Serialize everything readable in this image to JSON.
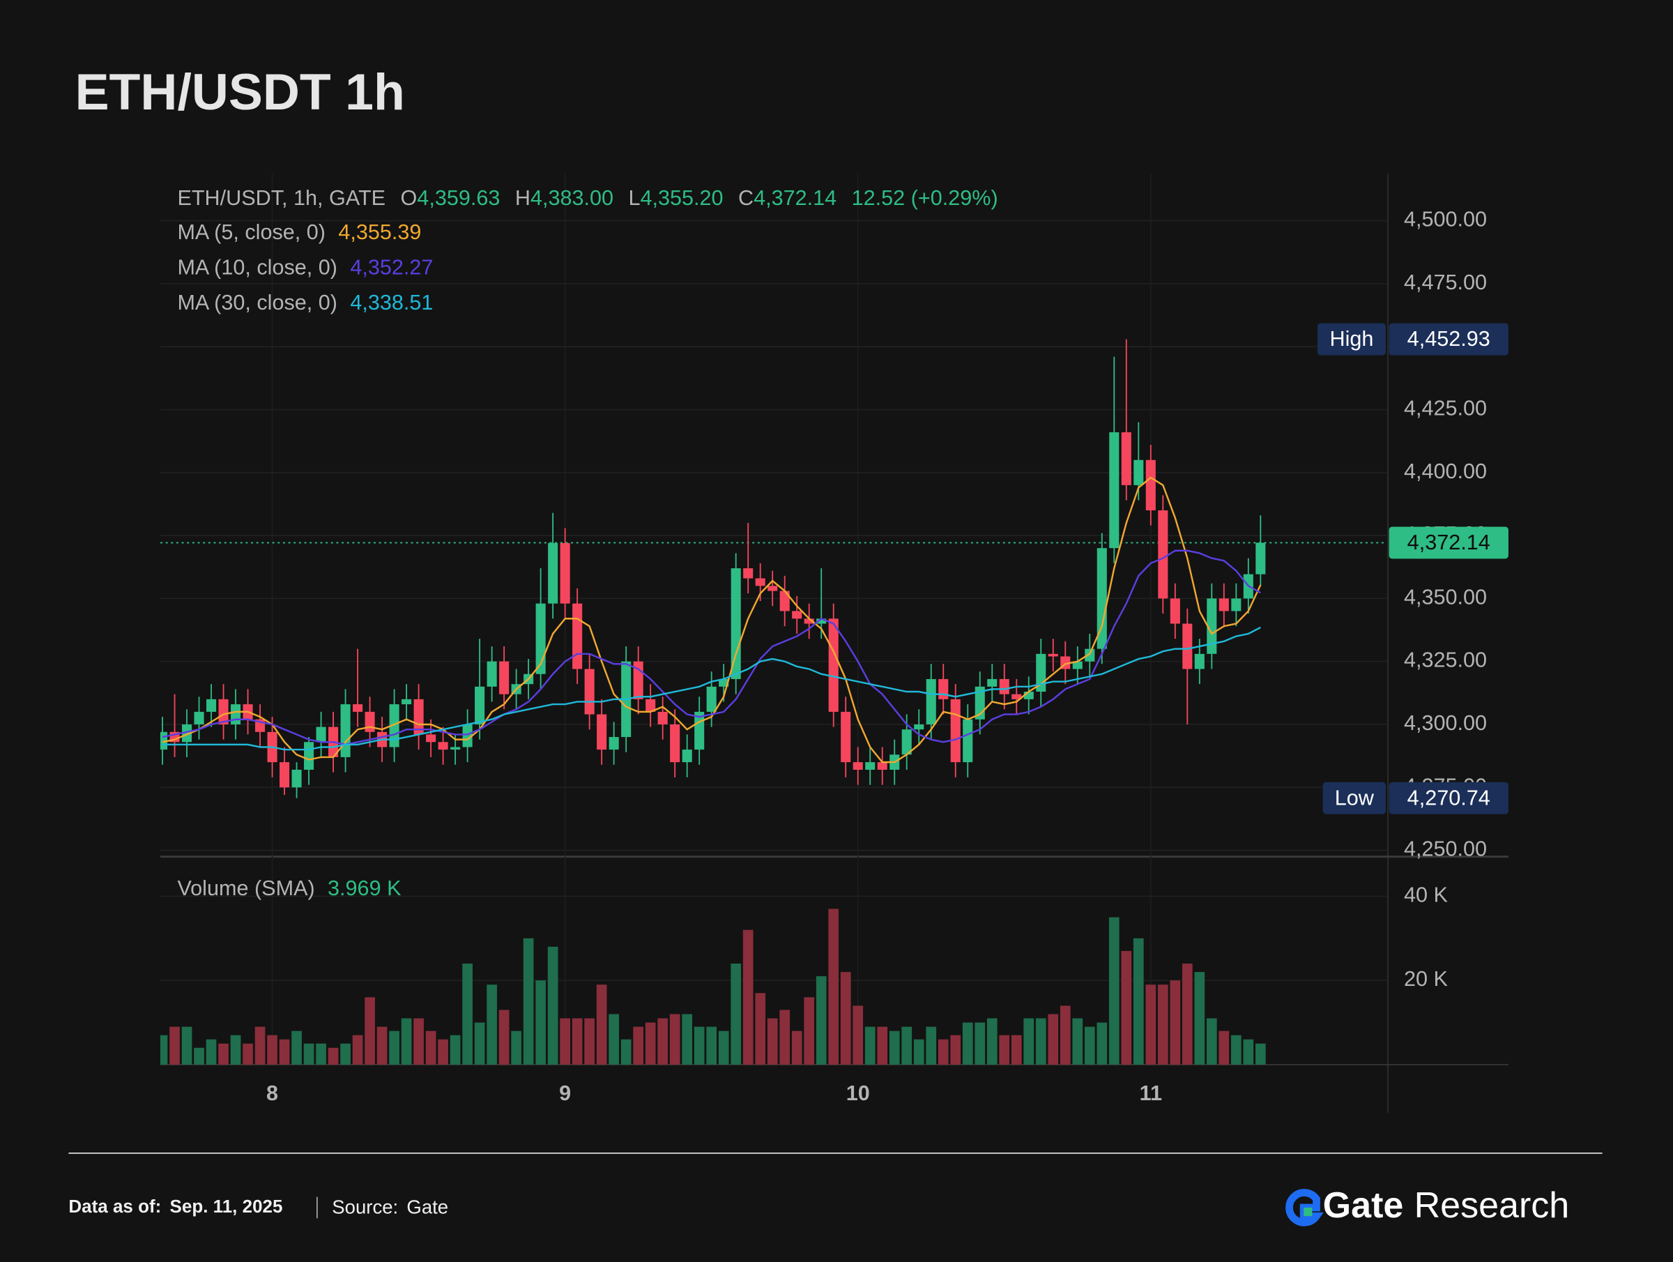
{
  "title": "ETH/USDT 1h",
  "chart_data": {
    "type": "candlestick",
    "symbol": "ETH/USDT, 1h, GATE",
    "ohlc_legend": [
      {
        "key": "O",
        "value": "4,359.63"
      },
      {
        "key": "H",
        "value": "4,383.00"
      },
      {
        "key": "L",
        "value": "4,355.20"
      },
      {
        "key": "C",
        "value": "4,372.14"
      }
    ],
    "change": "12.52 (+0.29%)",
    "categories": [
      null,
      null,
      null,
      null,
      null,
      null,
      null,
      null,
      null,
      "8",
      null,
      null,
      null,
      null,
      null,
      null,
      null,
      null,
      null,
      null,
      null,
      null,
      null,
      null,
      null,
      null,
      null,
      null,
      null,
      null,
      null,
      null,
      null,
      "9",
      null,
      null,
      null,
      null,
      null,
      null,
      null,
      null,
      null,
      null,
      null,
      null,
      null,
      null,
      null,
      null,
      null,
      null,
      null,
      null,
      null,
      null,
      null,
      "10",
      null,
      null,
      null,
      null,
      null,
      null,
      null,
      null,
      null,
      null,
      null,
      null,
      null,
      null,
      null,
      null,
      null,
      null,
      null,
      null,
      null,
      null,
      null,
      "11",
      null,
      null,
      null,
      null,
      null,
      null,
      null,
      null,
      null
    ],
    "open": [
      4290,
      4297,
      4293,
      4300,
      4305,
      4310,
      4300,
      4308,
      4302,
      4297,
      4285,
      4275,
      4282,
      4293,
      4299,
      4287,
      4308,
      4305,
      4297,
      4291,
      4308,
      4310,
      4296,
      4293,
      4290,
      4291,
      4300,
      4315,
      4325,
      4312,
      4316,
      4320,
      4348,
      4372,
      4348,
      4322,
      4304,
      4290,
      4295,
      4325,
      4310,
      4305,
      4300,
      4285,
      4290,
      4305,
      4315,
      4318,
      4362,
      4358,
      4355,
      4353,
      4345,
      4342,
      4340,
      4342,
      4305,
      4285,
      4282,
      4285,
      4282,
      4288,
      4298,
      4300,
      4318,
      4310,
      4285,
      4302,
      4315,
      4318,
      4312,
      4310,
      4313,
      4328,
      4327,
      4322,
      4325,
      4330,
      4370,
      4416,
      4395,
      4405,
      4385,
      4350,
      4340,
      4322,
      4328,
      4350,
      4345,
      4350,
      4359.63
    ],
    "high": [
      4303,
      4312,
      4306,
      4311,
      4316,
      4316,
      4314,
      4314,
      4308,
      4303,
      4291,
      4285,
      4295,
      4305,
      4305,
      4314,
      4330,
      4311,
      4303,
      4314,
      4316,
      4316,
      4302,
      4299,
      4296,
      4306,
      4334,
      4331,
      4331,
      4322,
      4326,
      4362,
      4384,
      4378,
      4354,
      4328,
      4310,
      4301,
      4331,
      4331,
      4316,
      4311,
      4306,
      4296,
      4311,
      4321,
      4324,
      4368,
      4380,
      4364,
      4361,
      4359,
      4351,
      4348,
      4362,
      4348,
      4311,
      4291,
      4291,
      4291,
      4294,
      4304,
      4306,
      4324,
      4324,
      4316,
      4308,
      4321,
      4324,
      4324,
      4318,
      4319,
      4334,
      4334,
      4333,
      4331,
      4336,
      4376,
      4446,
      4452.93,
      4420,
      4411,
      4391,
      4356,
      4346,
      4334,
      4356,
      4356,
      4356,
      4366,
      4383
    ],
    "low": [
      4284,
      4287,
      4287,
      4294,
      4299,
      4294,
      4294,
      4296,
      4291,
      4279,
      4272,
      4270.74,
      4276,
      4287,
      4281,
      4281,
      4299,
      4291,
      4285,
      4285,
      4302,
      4290,
      4287,
      4284,
      4284,
      4285,
      4294,
      4309,
      4306,
      4306,
      4310,
      4314,
      4342,
      4342,
      4316,
      4298,
      4284,
      4284,
      4289,
      4304,
      4299,
      4294,
      4279,
      4279,
      4284,
      4299,
      4309,
      4312,
      4352,
      4349,
      4347,
      4339,
      4336,
      4334,
      4334,
      4299,
      4279,
      4276,
      4276,
      4276,
      4276,
      4282,
      4292,
      4294,
      4304,
      4279,
      4279,
      4296,
      4309,
      4306,
      4304,
      4304,
      4307,
      4321,
      4316,
      4316,
      4319,
      4324,
      4364,
      4389,
      4389,
      4379,
      4344,
      4334,
      4300,
      4316,
      4322,
      4339,
      4339,
      4344,
      4355.2
    ],
    "close": [
      4297,
      4293,
      4300,
      4305,
      4310,
      4300,
      4308,
      4302,
      4297,
      4285,
      4275,
      4282,
      4293,
      4299,
      4287,
      4308,
      4305,
      4297,
      4291,
      4308,
      4310,
      4296,
      4293,
      4290,
      4291,
      4300,
      4315,
      4325,
      4312,
      4316,
      4320,
      4348,
      4372,
      4348,
      4322,
      4304,
      4290,
      4295,
      4325,
      4310,
      4305,
      4300,
      4285,
      4290,
      4305,
      4315,
      4318,
      4362,
      4358,
      4355,
      4353,
      4345,
      4342,
      4340,
      4342,
      4305,
      4285,
      4282,
      4285,
      4282,
      4288,
      4298,
      4300,
      4318,
      4310,
      4285,
      4302,
      4315,
      4318,
      4312,
      4310,
      4313,
      4328,
      4327,
      4322,
      4325,
      4330,
      4370,
      4416,
      4395,
      4405,
      4385,
      4350,
      4340,
      4322,
      4328,
      4350,
      4345,
      4350,
      4359.63,
      4372.14
    ],
    "up_color": "#2ebd85",
    "down_color": "#f6465d",
    "series": [
      {
        "name": "MA (5, close, 0)",
        "value_label": "4,355.39",
        "color": "#f0a830",
        "values": [
          4293,
          4294,
          4296,
          4298,
          4301,
          4304,
          4305,
          4305,
          4303,
          4300,
          4293,
          4288,
          4286,
          4287,
          4287,
          4293,
          4298,
          4299,
          4298,
          4300,
          4302,
          4300,
          4300,
          4298,
          4294,
          4294,
          4298,
          4305,
          4308,
          4314,
          4318,
          4324,
          4336,
          4342,
          4342,
          4339,
          4325,
          4312,
          4307,
          4305,
          4305,
          4307,
          4303,
          4298,
          4301,
          4303,
          4311,
          4328,
          4342,
          4352,
          4357,
          4353,
          4347,
          4342,
          4338,
          4329,
          4318,
          4302,
          4291,
          4285,
          4285,
          4288,
          4292,
          4298,
          4305,
          4304,
          4302,
          4304,
          4309,
          4308,
          4309,
          4313,
          4316,
          4320,
          4324,
          4325,
          4328,
          4339,
          4362,
          4380,
          4394,
          4398,
          4395,
          4382,
          4366,
          4345,
          4336,
          4339,
          4340,
          4345,
          4355.39
        ]
      },
      {
        "name": "MA (10, close, 0)",
        "value_label": "4,352.27",
        "color": "#5b3ee0",
        "values": [
          4295,
          4296,
          4297,
          4298,
          4300,
          4301,
          4302,
          4302,
          4301,
          4300,
          4298,
          4296,
          4294,
          4293,
          4293,
          4292,
          4293,
          4294,
          4295,
          4296,
          4298,
          4298,
          4298,
          4297,
          4296,
          4296,
          4298,
          4301,
          4304,
          4306,
          4309,
          4314,
          4320,
          4325,
          4328,
          4328,
          4326,
          4324,
          4324,
          4322,
          4318,
          4313,
          4308,
          4304,
          4303,
          4304,
          4305,
          4310,
          4318,
          4326,
          4331,
          4333,
          4335,
          4338,
          4342,
          4340,
          4333,
          4325,
          4316,
          4312,
          4306,
          4300,
          4296,
          4294,
          4293,
          4294,
          4296,
          4298,
          4302,
          4304,
          4304,
          4305,
          4307,
          4310,
          4314,
          4316,
          4318,
          4328,
          4339,
          4348,
          4359,
          4364,
          4366,
          4369,
          4369,
          4368,
          4366,
          4365,
          4361,
          4355,
          4352.27
        ]
      },
      {
        "name": "MA (30, close, 0)",
        "value_label": "4,338.51",
        "color": "#20b8d8",
        "values": [
          4292,
          4292,
          4292,
          4292,
          4292,
          4292,
          4292,
          4292,
          4291,
          4291,
          4290,
          4290,
          4290,
          4291,
          4291,
          4292,
          4292,
          4293,
          4294,
          4294,
          4295,
          4296,
          4297,
          4298,
          4299,
          4300,
          4301,
          4302,
          4304,
          4305,
          4306,
          4307,
          4308,
          4308,
          4309,
          4309,
          4309,
          4310,
          4310,
          4311,
          4311,
          4312,
          4313,
          4314,
          4315,
          4317,
          4318,
          4320,
          4322,
          4325,
          4326,
          4325,
          4323,
          4322,
          4320,
          4319,
          4318,
          4317,
          4316,
          4315,
          4314,
          4313,
          4313,
          4312,
          4312,
          4311,
          4312,
          4313,
          4314,
          4314,
          4315,
          4315,
          4316,
          4317,
          4317,
          4318,
          4319,
          4320,
          4322,
          4324,
          4326,
          4327,
          4329,
          4330,
          4330,
          4331,
          4332,
          4333,
          4335,
          4336,
          4338.51
        ]
      }
    ],
    "ylim": [
      4247.5,
      4518.6
    ],
    "yticks": [
      {
        "value": 4250,
        "label": "4,250.00"
      },
      {
        "value": 4275,
        "label": "4,275.00"
      },
      {
        "value": 4300,
        "label": "4,300.00"
      },
      {
        "value": 4325,
        "label": "4,325.00"
      },
      {
        "value": 4350,
        "label": "4,350.00"
      },
      {
        "value": 4375,
        "label": "4,375.00"
      },
      {
        "value": 4400,
        "label": "4,400.00"
      },
      {
        "value": 4425,
        "label": "4,425.00"
      },
      {
        "value": 4450,
        "label": "4,450.00"
      },
      {
        "value": 4475,
        "label": "4,475.00"
      },
      {
        "value": 4500,
        "label": "4,500.00"
      }
    ],
    "high_marker": {
      "label": "High",
      "value": 4452.93,
      "value_label": "4,452.93"
    },
    "low_marker": {
      "label": "Low",
      "value": 4270.74,
      "value_label": "4,270.74"
    },
    "last_price": {
      "value": 4372.14,
      "label": "4,372.14"
    },
    "volume": {
      "name": "Volume (SMA)",
      "value_label": "3.969 K",
      "up_color": "#1f6e4e",
      "down_color": "#8a2e3b",
      "values": [
        7000,
        9000,
        9000,
        4000,
        6000,
        5000,
        7000,
        5000,
        9000,
        7000,
        6000,
        8000,
        5000,
        5000,
        4000,
        5000,
        7000,
        16000,
        9000,
        8000,
        11000,
        11000,
        8000,
        6000,
        7000,
        24000,
        10000,
        19000,
        13000,
        8000,
        30000,
        20000,
        28000,
        11000,
        11000,
        11000,
        19000,
        12000,
        6000,
        9000,
        10000,
        11000,
        12000,
        12000,
        9000,
        9000,
        8000,
        24000,
        32000,
        17000,
        11000,
        13000,
        8000,
        16000,
        21000,
        37000,
        22000,
        14000,
        9000,
        9000,
        8000,
        9000,
        6000,
        9000,
        6000,
        7000,
        10000,
        10000,
        11000,
        7000,
        7000,
        11000,
        11000,
        12000,
        14000,
        11000,
        9000,
        10000,
        35000,
        27000,
        30000,
        19000,
        19000,
        20000,
        24000,
        22000,
        11000,
        8000,
        7000,
        6000,
        5000
      ],
      "ylim": [
        0,
        49400
      ],
      "yticks": [
        {
          "value": 20000,
          "label": "20 K"
        },
        {
          "value": 40000,
          "label": "40 K"
        }
      ]
    }
  },
  "footer": {
    "date_label": "Data as of:",
    "date": "Sep. 11, 2025",
    "source_label": "Source:",
    "source": "Gate",
    "brand": "Gate",
    "brand_suffix": "Research"
  }
}
